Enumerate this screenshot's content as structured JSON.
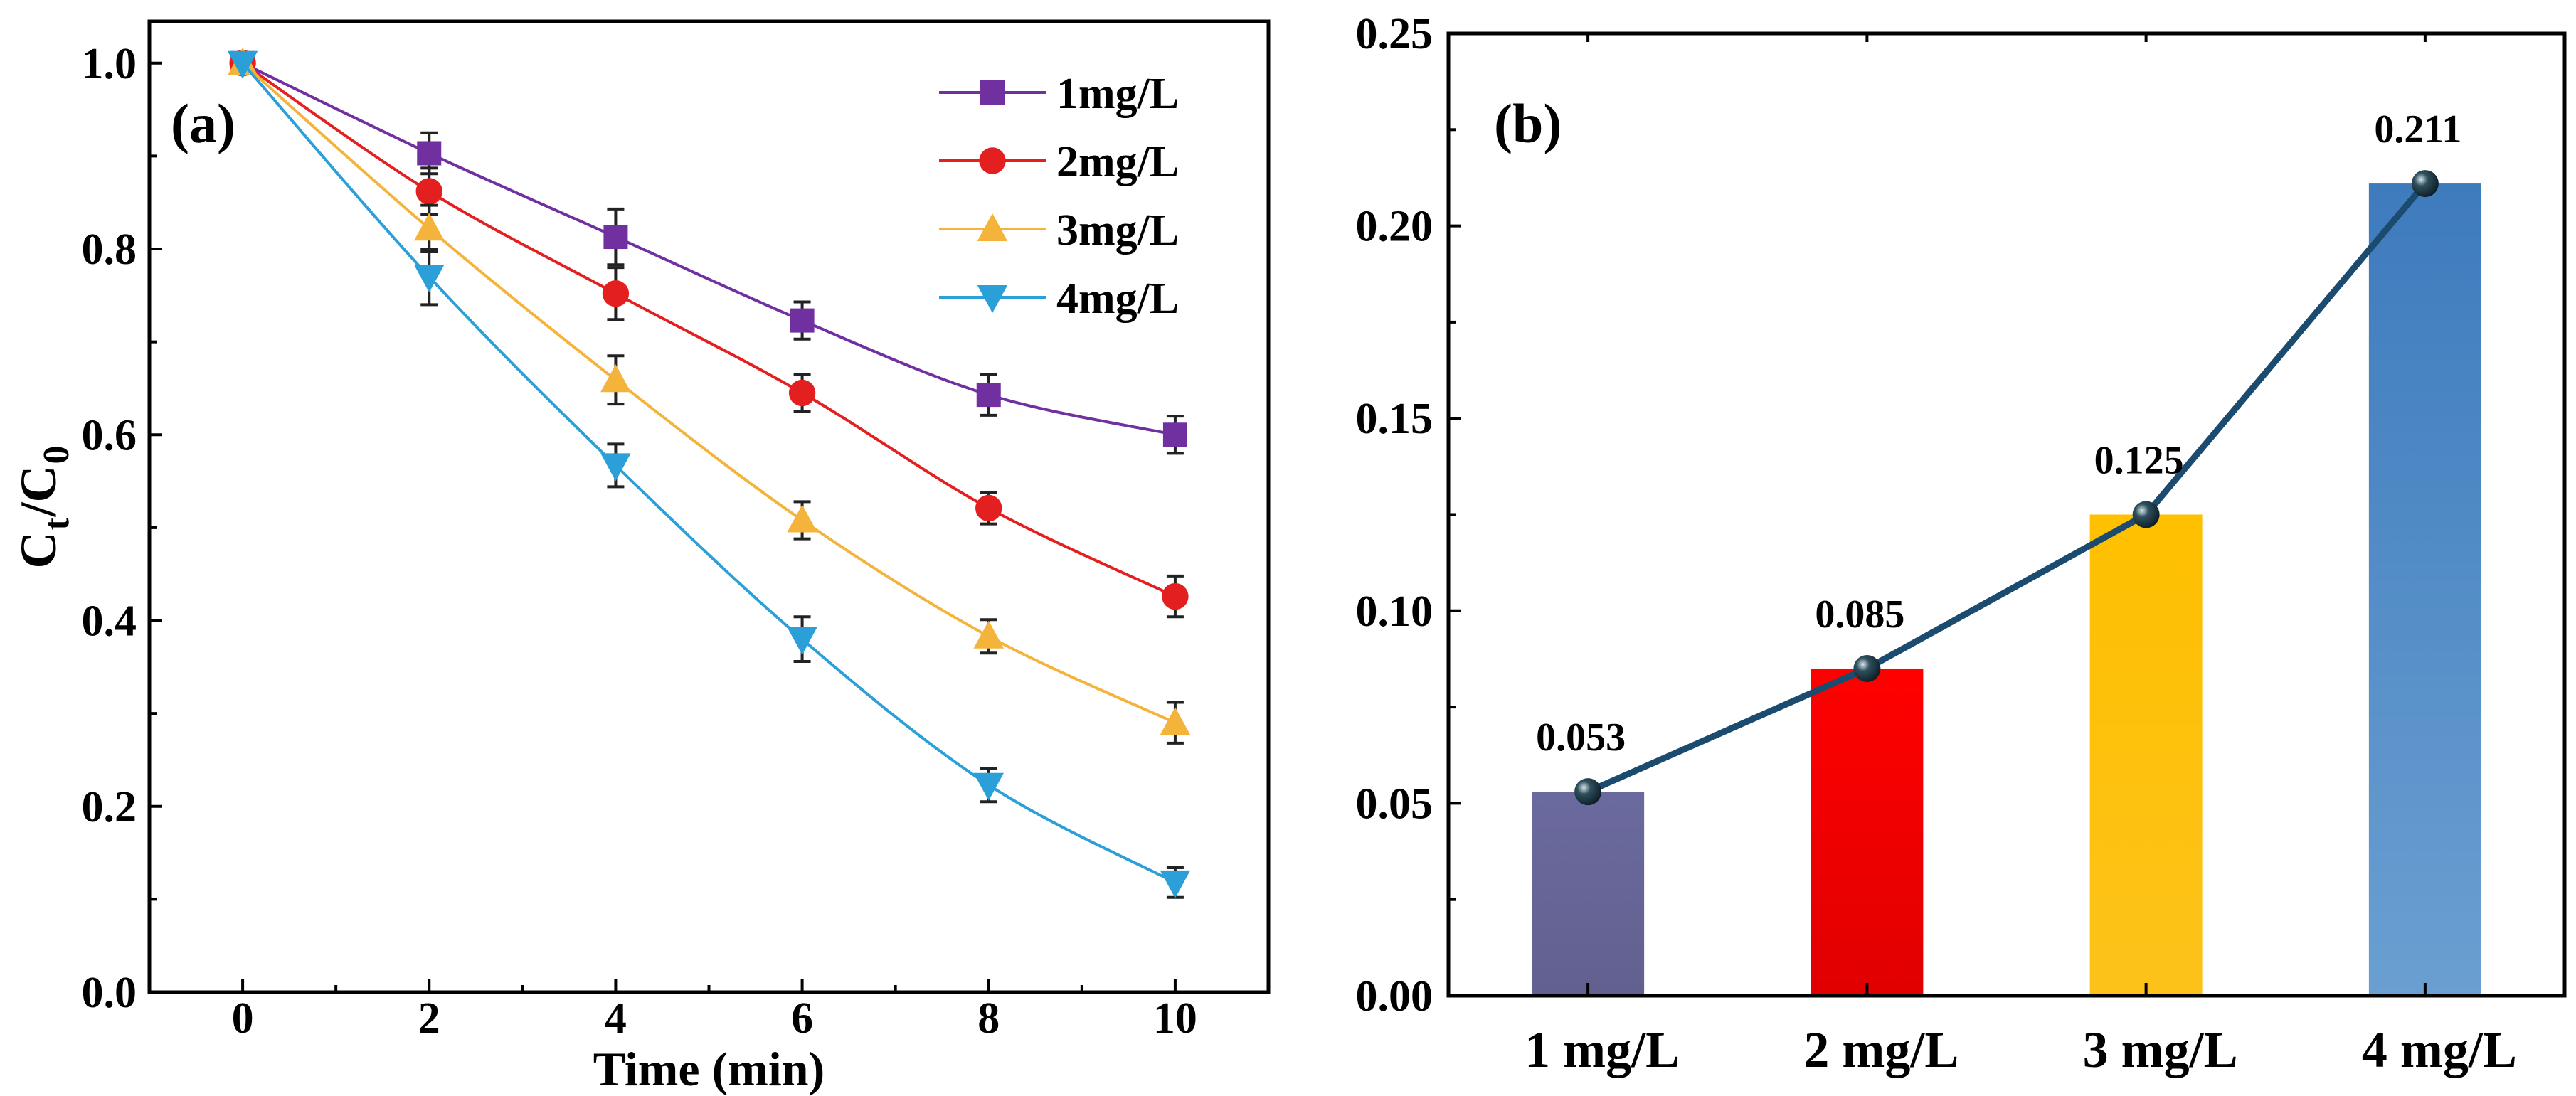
{
  "chart_data": [
    {
      "type": "line",
      "panel_label": "(a)",
      "xlabel": "Time (min)",
      "ylabel": {
        "main": "C",
        "sub1": "t",
        "slash": "/C",
        "sub2": "0"
      },
      "xlim": [
        -1,
        11
      ],
      "ylim": [
        0,
        1.045
      ],
      "xticks": [
        0,
        2,
        4,
        6,
        8,
        10
      ],
      "xtick_labels": [
        "0",
        "2",
        "4",
        "6",
        "8",
        "10"
      ],
      "yticks": [
        0,
        0.2,
        0.4,
        0.6,
        0.8,
        1.0
      ],
      "ytick_labels": [
        "0.0",
        "0.2",
        "0.4",
        "0.6",
        "0.8",
        "1.0"
      ],
      "legend_position": "top-right",
      "grid": false,
      "x": [
        0,
        2,
        4,
        6,
        8,
        10
      ],
      "series": [
        {
          "name": "1mg/L",
          "marker": "square",
          "color": "#7030A0",
          "values": [
            1.0,
            0.903,
            0.813,
            0.723,
            0.643,
            0.6
          ],
          "errors": [
            0.005,
            0.022,
            0.03,
            0.02,
            0.022,
            0.02
          ]
        },
        {
          "name": "2mg/L",
          "marker": "circle",
          "color": "#E3201F",
          "values": [
            1.0,
            0.862,
            0.752,
            0.645,
            0.521,
            0.426
          ],
          "errors": [
            0.005,
            0.025,
            0.028,
            0.02,
            0.017,
            0.022
          ]
        },
        {
          "name": "3mg/L",
          "marker": "triangle-up",
          "color": "#F4B43C",
          "values": [
            1.0,
            0.822,
            0.659,
            0.508,
            0.383,
            0.29
          ],
          "errors": [
            0.005,
            0.025,
            0.026,
            0.02,
            0.018,
            0.022
          ]
        },
        {
          "name": "4mg/L",
          "marker": "triangle-down",
          "color": "#2A9FD8",
          "values": [
            1.0,
            0.77,
            0.567,
            0.38,
            0.223,
            0.118
          ],
          "errors": [
            0.005,
            0.03,
            0.023,
            0.024,
            0.018,
            0.016
          ]
        }
      ]
    },
    {
      "type": "bar",
      "panel_label": "(b)",
      "xlabel": "",
      "ylabel": "",
      "ylim": [
        0,
        0.25
      ],
      "yticks": [
        0,
        0.05,
        0.1,
        0.15,
        0.2,
        0.25
      ],
      "ytick_labels": [
        "0.00",
        "0.05",
        "0.10",
        "0.15",
        "0.20",
        "0.25"
      ],
      "categories": [
        "1 mg/L",
        "2 mg/L",
        "3 mg/L",
        "4 mg/L"
      ],
      "values": [
        0.053,
        0.085,
        0.125,
        0.211
      ],
      "data_labels": [
        "0.053",
        "0.085",
        "0.125",
        "0.211"
      ],
      "bar_colors": [
        [
          "#6B6A9E",
          "#62608F"
        ],
        [
          "#FF0000",
          "#E00000"
        ],
        [
          "#FFC000",
          "#FCC21A"
        ],
        [
          "#3E7BBD",
          "#6A9FD1"
        ]
      ],
      "line_color": "#1B4B6E",
      "grid": false
    }
  ]
}
